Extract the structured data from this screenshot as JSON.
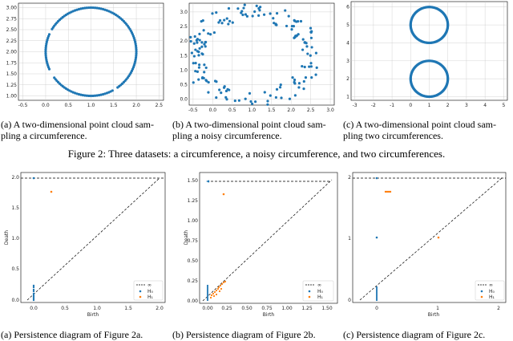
{
  "panels_top": [
    {
      "name": "a",
      "caption": "(a) A two-dimensional point cloud sam-\npling a circumference.",
      "xlim": [
        -0.6,
        2.6
      ],
      "ylim": [
        0.9,
        3.1
      ],
      "xticks": [
        "-0.5",
        "0.0",
        "0.5",
        "1.0",
        "1.5",
        "2.0",
        "2.5"
      ],
      "yticks": [
        "1.00",
        "1.25",
        "1.50",
        "1.75",
        "2.00",
        "2.25",
        "2.50",
        "2.75",
        "3.00"
      ]
    },
    {
      "name": "b",
      "caption": "(b) A two-dimensional point cloud sam-\npling a noisy circumference.",
      "xlim": [
        -0.6,
        3.1
      ],
      "ylim": [
        -0.2,
        3.3
      ],
      "xticks": [
        "-0.5",
        "0.0",
        "0.5",
        "1.0",
        "1.5",
        "2.0",
        "2.5",
        "3.0"
      ],
      "yticks": [
        "0.0",
        "0.5",
        "1.0",
        "1.5",
        "2.0",
        "2.5",
        "3.0"
      ]
    },
    {
      "name": "c",
      "caption": "(c) A two-dimensional point cloud sam-\npling two circumferences.",
      "xlim": [
        -3.2,
        5.2
      ],
      "ylim": [
        0.8,
        6.3
      ],
      "xticks": [
        "-3",
        "-2",
        "-1",
        "0",
        "1",
        "2",
        "3",
        "4",
        "5"
      ],
      "yticks": [
        "1",
        "2",
        "3",
        "4",
        "5",
        "6"
      ]
    }
  ],
  "figure_caption": "Figure 2: Three datasets: a circumference, a noisy circumference, and two circumferences.",
  "panels_bottom": [
    {
      "name": "d",
      "caption": "(a) Persistence diagram of Figure 2a.",
      "xlabel": "Birth",
      "ylabel": "Death",
      "xticks": [
        "0.0",
        "0.5",
        "1.0",
        "1.5",
        "2.0"
      ],
      "yticks": [
        "0.0",
        "0.5",
        "1.0",
        "1.5",
        "2.0"
      ],
      "legend": [
        "∞",
        "H₀",
        "H₁"
      ]
    },
    {
      "name": "e",
      "caption": "(b) Persistence diagram of Figure 2b.",
      "xlabel": "Birth",
      "ylabel": "Death",
      "xticks": [
        "0.00",
        "0.25",
        "0.50",
        "0.75",
        "1.00",
        "1.25",
        "1.50"
      ],
      "yticks": [
        "0.00",
        "0.25",
        "0.50",
        "0.75",
        "1.00",
        "1.25",
        "1.50"
      ],
      "legend": [
        "∞",
        "H₀",
        "H₁"
      ]
    },
    {
      "name": "f",
      "caption": "(c) Persistence diagram of Figure 2c.",
      "xlabel": "Birth",
      "ylabel": "",
      "xticks": [
        "0",
        "1",
        "2"
      ],
      "yticks": [
        "0",
        "1",
        "2"
      ],
      "legend": [
        "∞",
        "H₀",
        "H₁"
      ]
    }
  ],
  "colors": {
    "blue": "#1f77b4",
    "orange": "#ff7f0e",
    "grid": "#b0b0b0"
  }
}
